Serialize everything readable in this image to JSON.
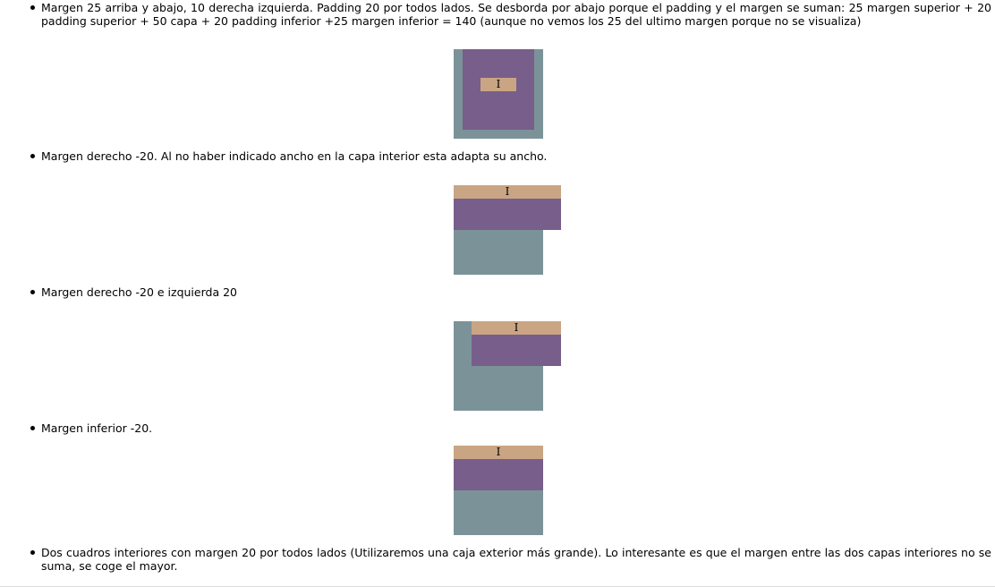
{
  "items": [
    {
      "text": "Margen 25 arriba y abajo, 10 derecha izquierda. Padding 20 por todos lados. Se desborda por abajo porque el padding y el margen se suman: 25 margen superior + 20 padding superior + 50 capa + 20 padding inferior +25 margen inferior = 140 (aunque no vemos los 25 del ultimo margen porque no se visualiza)",
      "box_label": "I"
    },
    {
      "text": "Margen derecho -20. Al no haber indicado ancho en la capa interior esta adapta su ancho.",
      "box_label": "I"
    },
    {
      "text": "Margen derecho -20 e izquierda 20",
      "box_label": "I"
    },
    {
      "text": "Margen inferior -20.",
      "box_label": "I"
    },
    {
      "text": "Dos cuadros interiores con margen 20 por todos lados (Utilizaremos una caja exterior más grande). Lo interesante es que el margen entre las dos capas interiores no se suma, se coge el mayor."
    }
  ],
  "colors": {
    "outer_box": "#7b9398",
    "inner_box": "#775e8b",
    "content_box": "#c9a583"
  }
}
